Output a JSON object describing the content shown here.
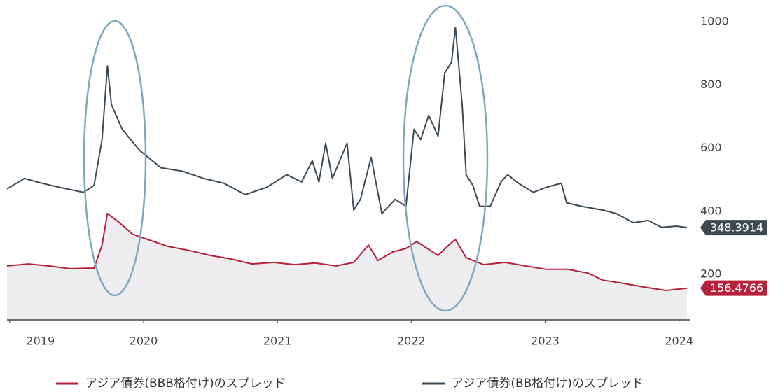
{
  "chart_data": {
    "type": "line",
    "series": [
      {
        "name": "アジア債券(BBB格付け)のスプレッド",
        "color": "#b5223a",
        "area": true,
        "x": [
          2018.98,
          2019.14,
          2019.29,
          2019.45,
          2019.63,
          2019.69,
          2019.73,
          2019.82,
          2019.92,
          2020.03,
          2020.18,
          2020.34,
          2020.5,
          2020.65,
          2020.81,
          2020.97,
          2021.13,
          2021.28,
          2021.44,
          2021.57,
          2021.68,
          2021.75,
          2021.86,
          2021.96,
          2022.04,
          2022.12,
          2022.2,
          2022.28,
          2022.33,
          2022.41,
          2022.54,
          2022.7,
          2022.85,
          2023.01,
          2023.17,
          2023.32,
          2023.43,
          2023.59,
          2023.74,
          2023.9,
          2024.06
        ],
        "values": [
          227,
          233,
          227,
          218,
          220,
          293,
          393,
          364,
          327,
          311,
          289,
          276,
          260,
          249,
          233,
          238,
          231,
          236,
          227,
          238,
          293,
          244,
          271,
          282,
          304,
          282,
          260,
          293,
          311,
          253,
          231,
          238,
          227,
          216,
          216,
          204,
          182,
          171,
          160,
          149,
          156.4766
        ]
      },
      {
        "name": "アジア債券(BB格付け)のスプレッド",
        "color": "#3d4a54",
        "x": [
          2018.98,
          2019.11,
          2019.24,
          2019.37,
          2019.55,
          2019.63,
          2019.69,
          2019.73,
          2019.76,
          2019.84,
          2019.97,
          2020.13,
          2020.29,
          2020.45,
          2020.6,
          2020.76,
          2020.92,
          2021.07,
          2021.18,
          2021.26,
          2021.31,
          2021.36,
          2021.41,
          2021.52,
          2021.57,
          2021.62,
          2021.7,
          2021.78,
          2021.88,
          2021.96,
          2022.02,
          2022.07,
          2022.13,
          2022.2,
          2022.25,
          2022.3,
          2022.33,
          2022.38,
          2022.41,
          2022.46,
          2022.51,
          2022.59,
          2022.67,
          2022.72,
          2022.8,
          2022.91,
          2023.01,
          2023.12,
          2023.16,
          2023.27,
          2023.43,
          2023.53,
          2023.66,
          2023.77,
          2023.87,
          2023.98,
          2024.06
        ],
        "values": [
          471,
          504,
          489,
          476,
          460,
          482,
          627,
          860,
          738,
          660,
          593,
          538,
          527,
          504,
          489,
          453,
          476,
          516,
          493,
          560,
          493,
          616,
          504,
          616,
          404,
          438,
          571,
          393,
          438,
          416,
          660,
          627,
          704,
          638,
          838,
          871,
          982,
          738,
          516,
          482,
          416,
          416,
          493,
          516,
          489,
          460,
          476,
          489,
          427,
          416,
          404,
          393,
          364,
          371,
          349,
          353,
          348.3914
        ]
      }
    ],
    "xlim": [
      2018.98,
      2024.08
    ],
    "xticks": [
      2019,
      2020,
      2021,
      2022,
      2023,
      2024
    ],
    "ylim": [
      56,
      1069
    ],
    "yticks": [
      200,
      400,
      600,
      800,
      1000
    ]
  }
}
